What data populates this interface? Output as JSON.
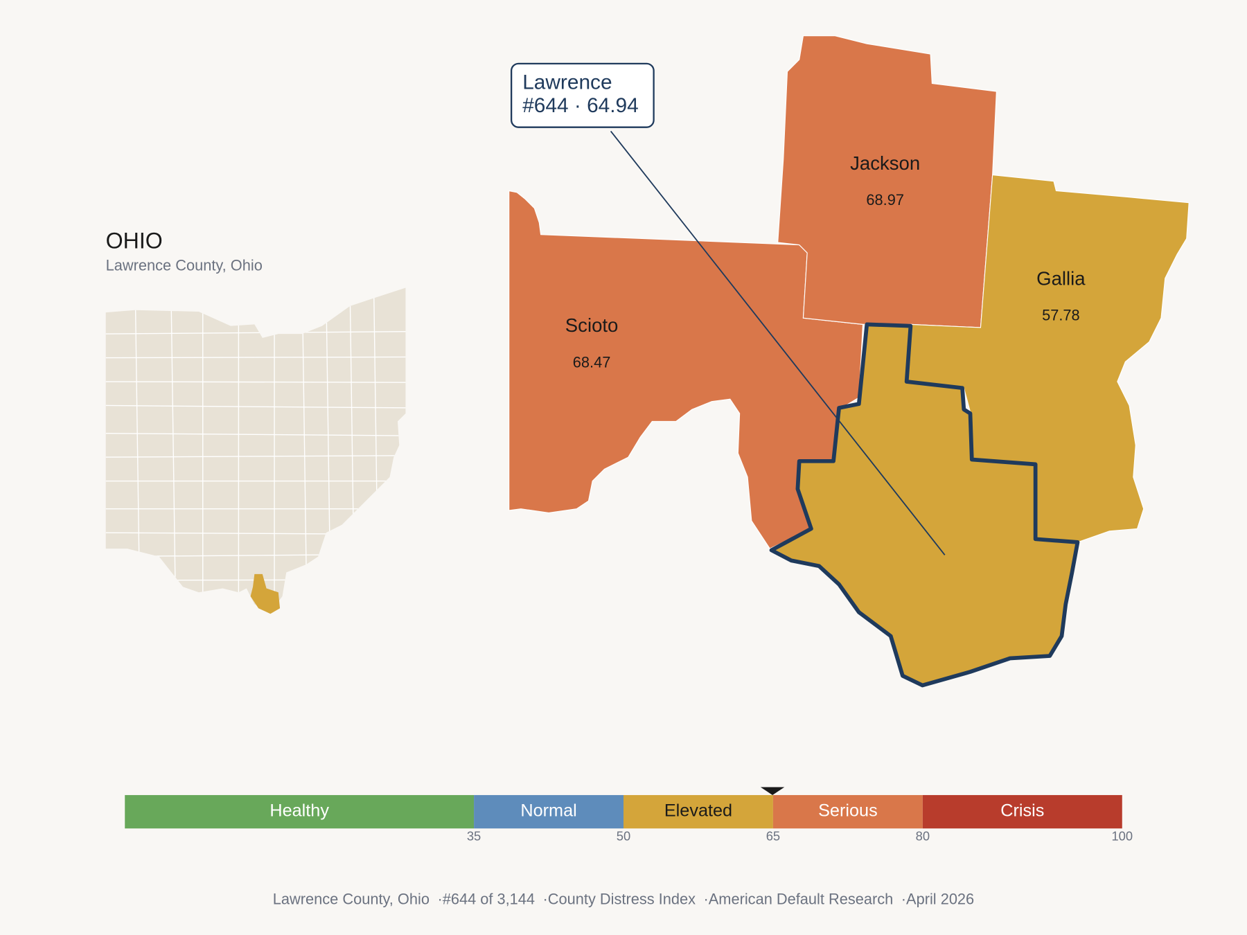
{
  "header": {
    "title": "OHIO",
    "subtitle": "Lawrence County, Ohio"
  },
  "callout": {
    "name": "Lawrence",
    "rank": "#644",
    "separator": "·",
    "score": 64.94
  },
  "counties": [
    {
      "name": "Scioto",
      "score": 68.47
    },
    {
      "name": "Jackson",
      "score": 68.97
    },
    {
      "name": "Gallia",
      "score": 57.78
    }
  ],
  "legend": {
    "range": [
      0,
      100
    ],
    "ticks": [
      35,
      50,
      65,
      80,
      100
    ],
    "segments": [
      {
        "label": "Healthy",
        "color": "#68a85a",
        "text_color": "#ffffff"
      },
      {
        "label": "Normal",
        "color": "#5e8cbb",
        "text_color": "#ffffff"
      },
      {
        "label": "Elevated",
        "color": "#d4a53a",
        "text_color": "#1a1a1a"
      },
      {
        "label": "Serious",
        "color": "#d9774a",
        "text_color": "#ffffff"
      },
      {
        "label": "Crisis",
        "color": "#b83c2c",
        "text_color": "#ffffff"
      }
    ]
  },
  "footer": {
    "separator": "·",
    "parts": [
      "Lawrence County, Ohio",
      "#644 of 3,144",
      "County Distress Index",
      "American Default Research",
      "April 2026"
    ]
  }
}
